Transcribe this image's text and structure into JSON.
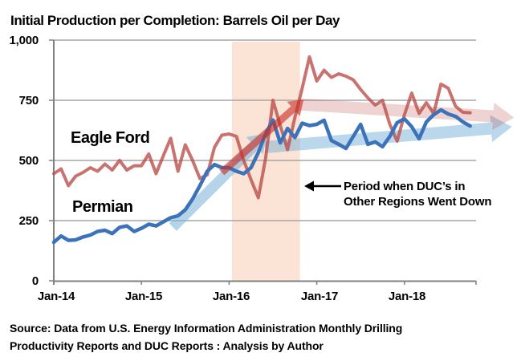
{
  "title": "Initial Production per Completion: Barrels Oil per Day",
  "source": {
    "line1": "Source: Data from U.S. Energy Information Administration  Monthly Drilling",
    "line2": "Productivity Reports and DUC Reports : Analysis by Author"
  },
  "chart_data": {
    "type": "line",
    "x_unit": "month",
    "x_start": "Jan-14",
    "x_end": "Oct-18",
    "x_tick_labels": [
      "Jan-14",
      "Jan-15",
      "Jan-16",
      "Jan-17",
      "Jan-18"
    ],
    "ylim": [
      0,
      1000
    ],
    "y_ticks": [
      1000,
      750,
      500,
      250,
      0
    ],
    "y_tick_labels": [
      "1,000",
      "750",
      "500",
      "250",
      "0"
    ],
    "grid": "horizontal",
    "grid_color": "#A6A6A6",
    "axis_color": "#808080",
    "series": [
      {
        "name": "Eagle Ford",
        "label_color": "#C00000",
        "line_color": "rgba(185,75,70,0.78)",
        "line_width": 4,
        "values": [
          445,
          465,
          395,
          435,
          450,
          470,
          455,
          485,
          460,
          500,
          460,
          478,
          478,
          527,
          445,
          520,
          592,
          455,
          565,
          500,
          425,
          440,
          555,
          605,
          610,
          600,
          500,
          420,
          345,
          510,
          750,
          645,
          545,
          678,
          800,
          930,
          830,
          875,
          845,
          860,
          850,
          835,
          795,
          760,
          730,
          750,
          650,
          580,
          690,
          780,
          695,
          740,
          695,
          817,
          800,
          725,
          700,
          698
        ]
      },
      {
        "name": "Permian",
        "label_color": "#2A70C0",
        "line_color": "#3B73BB",
        "line_width": 4.5,
        "values": [
          160,
          186,
          168,
          170,
          182,
          190,
          205,
          210,
          196,
          222,
          228,
          205,
          218,
          235,
          228,
          245,
          262,
          270,
          295,
          340,
          395,
          455,
          483,
          470,
          470,
          455,
          445,
          470,
          533,
          611,
          668,
          573,
          633,
          595,
          655,
          645,
          650,
          667,
          583,
          567,
          550,
          600,
          650,
          567,
          577,
          557,
          600,
          657,
          673,
          640,
          590,
          660,
          690,
          710,
          693,
          683,
          660,
          643
        ]
      }
    ],
    "shaded_region": {
      "start": "Feb-16",
      "end": "Nov-16",
      "from_month_index": 24.4,
      "to_month_index": 33.7,
      "color": "#FBE3D5"
    },
    "annotation": {
      "text_line1": "Period when DUC’s in",
      "text_line2": "Other Regions Went Down",
      "arrow_direction": "points-left-at-shaded-region"
    },
    "trend_arrows": [
      {
        "name": "permian-trend-up",
        "color": "rgba(120,175,215,0.55)",
        "from_month": 16.3,
        "from_value": 223,
        "to_month": 29.2,
        "to_value": 613,
        "width": 13,
        "head_l": 22,
        "head_w": 30
      },
      {
        "name": "permian-trend-flat",
        "color": "rgba(120,175,215,0.50)",
        "from_month": 28.9,
        "from_value": 555,
        "to_month": 62.7,
        "to_value": 640,
        "width": 15,
        "head_l": 26,
        "head_w": 34
      },
      {
        "name": "eagleford-trend-flat",
        "color": "rgba(192,80,77,0.25)",
        "from_month": 33.5,
        "from_value": 733,
        "to_month": 63.0,
        "to_value": 678,
        "width": 15,
        "head_l": 26,
        "head_w": 34
      },
      {
        "name": "eagleford-trend-up",
        "color": "rgba(200,45,38,0.62)",
        "from_month": 23.0,
        "from_value": 450,
        "to_month": 34.2,
        "to_value": 752,
        "width": 9,
        "head_l": 17,
        "head_w": 24
      }
    ]
  }
}
